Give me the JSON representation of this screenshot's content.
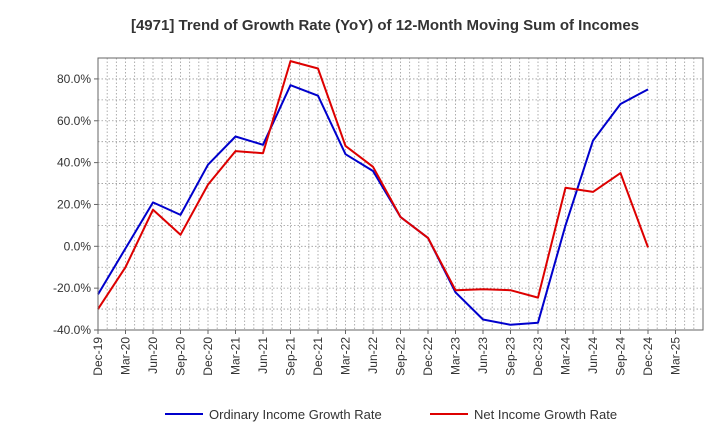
{
  "chart_data": {
    "type": "line",
    "title": "[4971]  Trend of Growth Rate (YoY) of 12-Month Moving Sum of Incomes",
    "xlabel": "",
    "ylabel": "",
    "ylim": [
      -40,
      90
    ],
    "yticks": [
      -40,
      -20,
      0,
      20,
      40,
      60,
      80
    ],
    "ytick_labels": [
      "-40.0%",
      "-20.0%",
      "0.0%",
      "20.0%",
      "40.0%",
      "60.0%",
      "80.0%"
    ],
    "x_tick_labels": [
      "Dec-19",
      "Mar-20",
      "Jun-20",
      "Sep-20",
      "Dec-20",
      "Mar-21",
      "Jun-21",
      "Sep-21",
      "Dec-21",
      "Mar-22",
      "Jun-22",
      "Sep-22",
      "Dec-22",
      "Mar-23",
      "Jun-23",
      "Sep-23",
      "Dec-23",
      "Mar-24",
      "Jun-24",
      "Sep-24",
      "Dec-24",
      "Mar-25"
    ],
    "x": [
      "Dec-19",
      "Mar-20",
      "Jun-20",
      "Sep-20",
      "Dec-20",
      "Mar-21",
      "Jun-21",
      "Sep-21",
      "Dec-21",
      "Mar-22",
      "Jun-22",
      "Sep-22",
      "Dec-22",
      "Mar-23",
      "Jun-23",
      "Sep-23",
      "Dec-23",
      "Mar-24",
      "Jun-24",
      "Sep-24",
      "Dec-24"
    ],
    "grid": true,
    "legend_position": "bottom",
    "series": [
      {
        "name": "Ordinary Income Growth Rate",
        "color": "#0000cc",
        "values": [
          -23.0,
          -1.0,
          21.0,
          15.0,
          39.0,
          52.5,
          48.5,
          77.0,
          72.0,
          44.0,
          36.0,
          14.0,
          4.0,
          -22.0,
          -35.0,
          -37.5,
          -36.5,
          10.0,
          50.5,
          68.0,
          75.0
        ]
      },
      {
        "name": "Net Income Growth Rate",
        "color": "#dd0000",
        "values": [
          -30.0,
          -10.0,
          17.5,
          5.5,
          29.5,
          45.5,
          44.5,
          88.5,
          85.0,
          48.0,
          38.0,
          14.0,
          4.0,
          -21.0,
          -20.5,
          -21.0,
          -24.5,
          28.0,
          26.0,
          35.0,
          -0.5
        ]
      }
    ]
  }
}
